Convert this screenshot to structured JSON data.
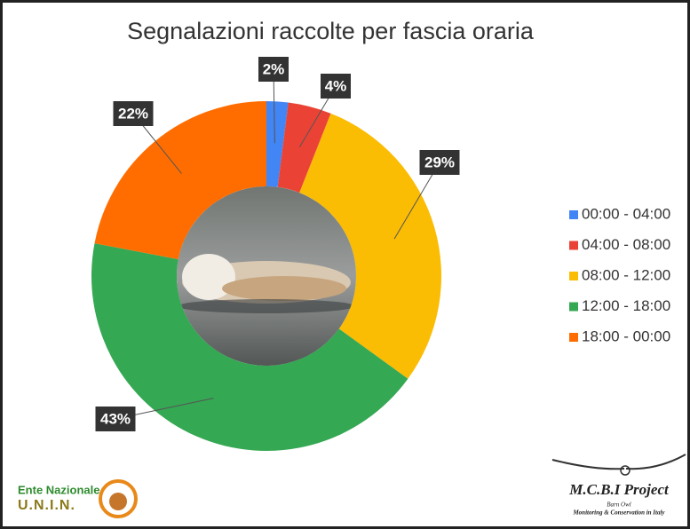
{
  "chart_data": {
    "type": "donut",
    "title": "Segnalazioni raccolte per fascia oraria",
    "categories": [
      "00:00 - 04:00",
      "04:00 - 08:00",
      "08:00 - 12:00",
      "12:00 - 18:00",
      "18:00 - 00:00"
    ],
    "values": [
      2,
      4,
      29,
      43,
      22
    ],
    "value_labels": [
      "2%",
      "4%",
      "29%",
      "43%",
      "22%"
    ],
    "colors": [
      "#4285f4",
      "#ea4335",
      "#fbbc04",
      "#34a853",
      "#ff6d01"
    ],
    "legend": "right"
  },
  "logos": {
    "left": {
      "name": "Ente Nazionale",
      "acronym": "U.N.I.N."
    },
    "right": {
      "title": "M.C.B.I Project",
      "subtitle": "Barn Owl",
      "tagline": "Monitoring & Conservation in Italy"
    }
  }
}
